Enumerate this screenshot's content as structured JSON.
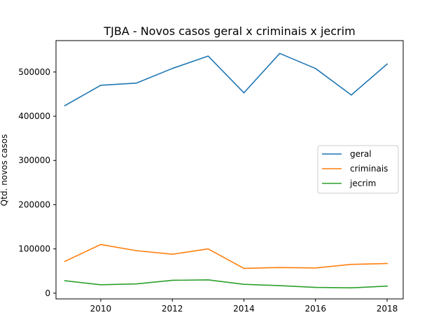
{
  "chart_data": {
    "type": "line",
    "title": "TJBA - Novos casos geral x criminais x jecrim",
    "xlabel": "",
    "ylabel": "Qtd. novos casos",
    "x": [
      2009,
      2010,
      2011,
      2012,
      2013,
      2014,
      2015,
      2016,
      2017,
      2018
    ],
    "xlim": [
      2008.75,
      2018.45
    ],
    "ylim": [
      -13000,
      571000
    ],
    "x_ticks": [
      2010,
      2012,
      2014,
      2016,
      2018
    ],
    "y_ticks": [
      0,
      100000,
      200000,
      300000,
      400000,
      500000
    ],
    "grid": false,
    "legend_placement": "center-right",
    "series": [
      {
        "name": "geral",
        "color": "#1f77b4",
        "values": [
          424000,
          470000,
          475000,
          508000,
          536000,
          453000,
          542000,
          508000,
          448000,
          518000
        ]
      },
      {
        "name": "criminais",
        "color": "#ff7f0e",
        "values": [
          72000,
          110000,
          96000,
          88000,
          100000,
          56000,
          58000,
          57000,
          65000,
          67000
        ]
      },
      {
        "name": "jecrim",
        "color": "#2ca02c",
        "values": [
          28000,
          19000,
          21000,
          29000,
          30000,
          20000,
          17000,
          13000,
          12000,
          16000
        ]
      }
    ]
  }
}
